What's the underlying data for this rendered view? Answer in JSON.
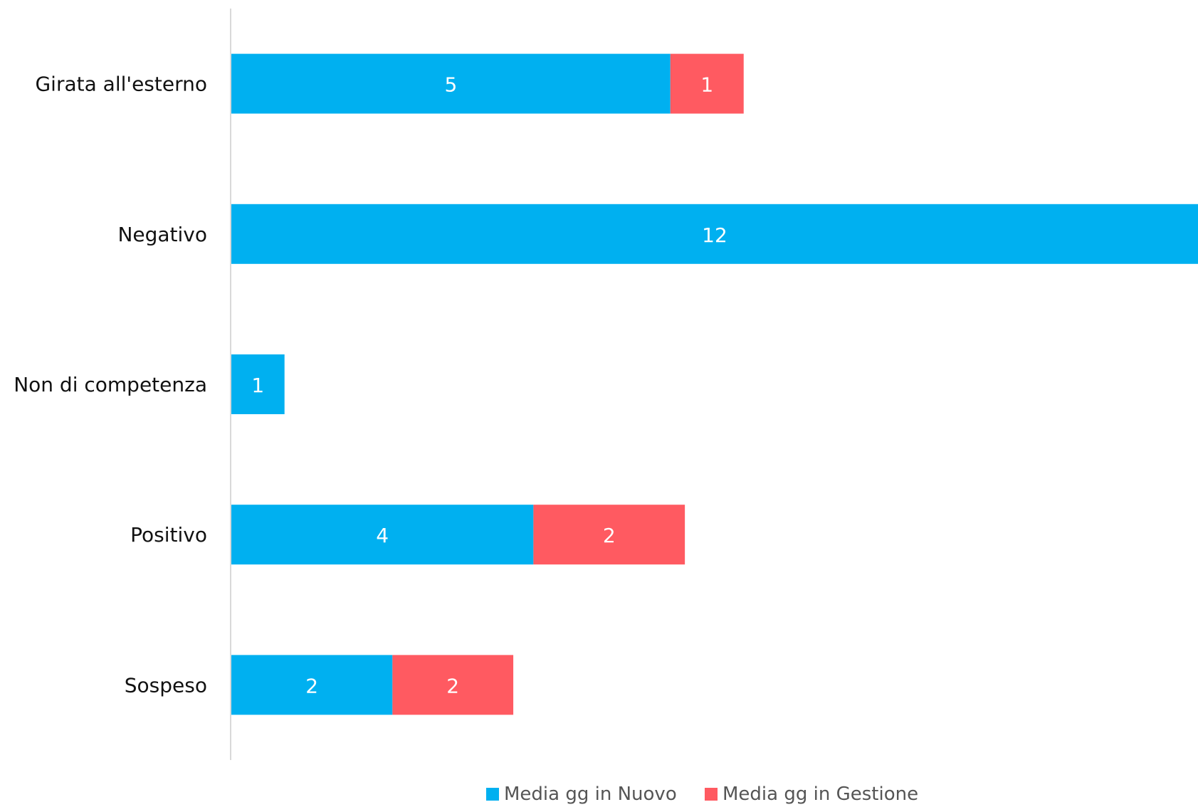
{
  "chart_data": {
    "type": "bar",
    "orientation": "horizontal",
    "stacked": true,
    "categories": [
      "Girata all'esterno",
      "Negativo",
      "Non di competenza",
      "Positivo",
      "Sospeso"
    ],
    "series": [
      {
        "name": "Media gg in Nuovo",
        "color": "#00B0F0",
        "values": [
          5.45,
          12.0,
          0.66,
          3.75,
          2.0
        ],
        "labels": [
          "5",
          "12",
          "1",
          "4",
          "2"
        ]
      },
      {
        "name": "Media gg in Gestione",
        "color": "#FF5A61",
        "values": [
          0.91,
          0.0,
          0.0,
          1.88,
          1.5
        ],
        "labels": [
          "1",
          "",
          "",
          "2",
          "2"
        ]
      }
    ],
    "xlim": [
      0,
      12.0
    ],
    "grid": false,
    "legend_position": "bottom"
  }
}
